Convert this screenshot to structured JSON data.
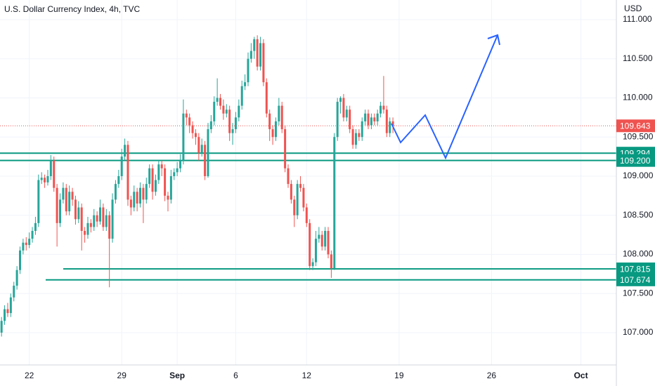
{
  "chart_data": {
    "type": "candlestick",
    "title": "U.S. Dollar Currency Index, 4h, TVC",
    "y_unit": "USD",
    "up_color": "#26a69a",
    "down_color": "#ef5350",
    "level_color": "#089981",
    "grid": true,
    "xlim": [
      -0.5,
      199.5
    ],
    "ylim": [
      106.587,
      111.251
    ],
    "xticks": [
      {
        "value": 9,
        "label": "22"
      },
      {
        "value": 39,
        "label": "29"
      },
      {
        "value": 57,
        "label": "Sep"
      },
      {
        "value": 76,
        "label": "6"
      },
      {
        "value": 99,
        "label": "12"
      },
      {
        "value": 129,
        "label": "19"
      },
      {
        "value": 159,
        "label": "26"
      },
      {
        "value": 188,
        "label": "Oct"
      }
    ],
    "yticks": [
      {
        "value": 107,
        "label": "107.000"
      },
      {
        "value": 107.5,
        "label": "107.500"
      },
      {
        "value": 108,
        "label": "108.000"
      },
      {
        "value": 108.5,
        "label": "108.500"
      },
      {
        "value": 109,
        "label": "109.000"
      },
      {
        "value": 109.5,
        "label": "109.500"
      },
      {
        "value": 110,
        "label": "110.000"
      },
      {
        "value": 110.5,
        "label": "110.500"
      },
      {
        "value": 111,
        "label": "111.000"
      }
    ],
    "levels": [
      {
        "value": 109.294,
        "label": "109.294"
      },
      {
        "value": 109.2,
        "label": "109.200"
      },
      {
        "value": 107.815,
        "label": "107.815"
      },
      {
        "value": 107.674,
        "label": "107.674"
      }
    ],
    "last_price": {
      "value": 109.643,
      "label": "109.643"
    },
    "ohlc": [
      [
        107.0,
        107.2,
        106.95,
        107.15
      ],
      [
        107.15,
        107.35,
        107.1,
        107.3
      ],
      [
        107.3,
        107.38,
        107.2,
        107.25
      ],
      [
        107.25,
        107.5,
        107.2,
        107.45
      ],
      [
        107.45,
        107.65,
        107.4,
        107.6
      ],
      [
        107.6,
        107.85,
        107.55,
        107.8
      ],
      [
        107.8,
        108.1,
        107.75,
        108.05
      ],
      [
        108.05,
        108.2,
        108.0,
        108.15
      ],
      [
        108.15,
        108.22,
        108.05,
        108.12
      ],
      [
        108.12,
        108.28,
        108.08,
        108.2
      ],
      [
        108.2,
        108.35,
        108.15,
        108.3
      ],
      [
        108.3,
        108.48,
        108.25,
        108.4
      ],
      [
        108.4,
        109.02,
        108.35,
        108.95
      ],
      [
        108.95,
        109.05,
        108.9,
        108.98
      ],
      [
        108.98,
        109.02,
        108.85,
        108.92
      ],
      [
        108.92,
        109.08,
        108.88,
        109.0
      ],
      [
        109.0,
        109.27,
        108.95,
        109.2
      ],
      [
        109.2,
        109.25,
        108.8,
        108.85
      ],
      [
        108.85,
        108.9,
        108.1,
        108.4
      ],
      [
        108.4,
        108.78,
        108.35,
        108.7
      ],
      [
        108.7,
        108.92,
        108.65,
        108.85
      ],
      [
        108.85,
        108.9,
        108.5,
        108.55
      ],
      [
        108.55,
        108.88,
        108.5,
        108.8
      ],
      [
        108.8,
        108.85,
        108.62,
        108.7
      ],
      [
        108.7,
        108.75,
        108.38,
        108.45
      ],
      [
        108.45,
        108.68,
        108.4,
        108.6
      ],
      [
        108.6,
        108.65,
        108.05,
        108.3
      ],
      [
        108.3,
        108.35,
        108.15,
        108.25
      ],
      [
        108.25,
        108.48,
        108.2,
        108.4
      ],
      [
        108.4,
        108.45,
        108.28,
        108.35
      ],
      [
        108.35,
        108.58,
        108.3,
        108.5
      ],
      [
        108.5,
        108.55,
        108.35,
        108.42
      ],
      [
        108.42,
        108.7,
        108.38,
        108.6
      ],
      [
        108.6,
        108.65,
        108.3,
        108.35
      ],
      [
        108.35,
        108.58,
        108.3,
        108.5
      ],
      [
        108.5,
        108.55,
        107.58,
        108.2
      ],
      [
        108.2,
        108.78,
        108.15,
        108.7
      ],
      [
        108.7,
        108.95,
        108.65,
        108.9
      ],
      [
        108.9,
        109.08,
        108.85,
        109.0
      ],
      [
        109.0,
        109.35,
        108.95,
        109.25
      ],
      [
        109.25,
        109.48,
        109.2,
        109.4
      ],
      [
        109.4,
        109.45,
        108.62,
        108.7
      ],
      [
        108.7,
        108.75,
        108.5,
        108.6
      ],
      [
        108.6,
        108.88,
        108.55,
        108.8
      ],
      [
        108.8,
        108.85,
        108.55,
        108.65
      ],
      [
        108.65,
        108.92,
        108.6,
        108.85
      ],
      [
        108.85,
        108.9,
        108.4,
        108.7
      ],
      [
        108.7,
        108.98,
        108.65,
        108.9
      ],
      [
        108.9,
        109.15,
        108.85,
        109.1
      ],
      [
        109.1,
        109.15,
        108.7,
        108.8
      ],
      [
        108.8,
        109.02,
        108.75,
        108.95
      ],
      [
        108.95,
        109.2,
        108.9,
        109.15
      ],
      [
        109.15,
        109.2,
        109.0,
        109.1
      ],
      [
        109.1,
        109.15,
        108.68,
        108.75
      ],
      [
        108.75,
        108.8,
        108.55,
        108.7
      ],
      [
        108.7,
        109.08,
        108.65,
        109.0
      ],
      [
        109.0,
        109.1,
        108.95,
        109.05
      ],
      [
        109.05,
        109.18,
        109.0,
        109.1
      ],
      [
        109.1,
        109.28,
        109.05,
        109.2
      ],
      [
        109.2,
        109.98,
        109.15,
        109.8
      ],
      [
        109.8,
        109.85,
        109.65,
        109.75
      ],
      [
        109.75,
        109.8,
        109.55,
        109.65
      ],
      [
        109.65,
        109.7,
        109.48,
        109.55
      ],
      [
        109.55,
        109.6,
        109.4,
        109.5
      ],
      [
        109.5,
        109.55,
        109.2,
        109.3
      ],
      [
        109.3,
        109.48,
        109.25,
        109.4
      ],
      [
        109.4,
        109.45,
        108.95,
        109.0
      ],
      [
        109.0,
        109.68,
        108.98,
        109.6
      ],
      [
        109.6,
        109.78,
        109.55,
        109.7
      ],
      [
        109.7,
        110.02,
        109.65,
        109.95
      ],
      [
        109.95,
        110.25,
        109.9,
        110.0
      ],
      [
        110.0,
        110.05,
        109.85,
        109.9
      ],
      [
        109.9,
        109.98,
        109.72,
        109.8
      ],
      [
        109.8,
        109.92,
        109.75,
        109.85
      ],
      [
        109.85,
        109.9,
        109.45,
        109.55
      ],
      [
        109.55,
        109.68,
        109.4,
        109.6
      ],
      [
        109.6,
        109.82,
        109.55,
        109.75
      ],
      [
        109.75,
        109.98,
        109.7,
        109.9
      ],
      [
        109.9,
        110.22,
        109.85,
        110.15
      ],
      [
        110.15,
        110.3,
        110.1,
        110.2
      ],
      [
        110.2,
        110.58,
        110.15,
        110.5
      ],
      [
        110.5,
        110.7,
        110.45,
        110.6
      ],
      [
        110.6,
        110.78,
        110.5,
        110.75
      ],
      [
        110.75,
        110.8,
        110.35,
        110.4
      ],
      [
        110.4,
        110.78,
        110.35,
        110.7
      ],
      [
        110.7,
        110.75,
        110.15,
        110.2
      ],
      [
        110.2,
        110.25,
        109.75,
        109.8
      ],
      [
        109.8,
        109.85,
        109.45,
        109.6
      ],
      [
        109.6,
        109.65,
        109.4,
        109.5
      ],
      [
        109.5,
        109.75,
        109.45,
        109.7
      ],
      [
        109.7,
        110.0,
        109.65,
        109.9
      ],
      [
        109.9,
        109.95,
        109.55,
        109.6
      ],
      [
        109.6,
        109.65,
        109.05,
        109.1
      ],
      [
        109.1,
        109.15,
        108.85,
        108.9
      ],
      [
        108.9,
        108.95,
        108.65,
        108.7
      ],
      [
        108.7,
        108.75,
        108.35,
        108.5
      ],
      [
        108.5,
        108.95,
        108.45,
        108.9
      ],
      [
        108.9,
        109.0,
        108.8,
        108.85
      ],
      [
        108.85,
        108.9,
        108.55,
        108.6
      ],
      [
        108.6,
        108.65,
        108.35,
        108.4
      ],
      [
        108.4,
        108.45,
        107.8,
        107.85
      ],
      [
        107.85,
        107.95,
        107.8,
        107.9
      ],
      [
        107.9,
        108.3,
        107.85,
        108.2
      ],
      [
        108.2,
        108.35,
        108.15,
        108.25
      ],
      [
        108.25,
        108.3,
        108.05,
        108.1
      ],
      [
        108.1,
        108.35,
        108.05,
        108.3
      ],
      [
        108.3,
        108.35,
        107.95,
        108.0
      ],
      [
        108.0,
        108.05,
        107.7,
        107.82
      ],
      [
        107.82,
        109.55,
        107.8,
        109.5
      ],
      [
        109.5,
        110.0,
        109.45,
        109.95
      ],
      [
        109.95,
        110.02,
        109.8,
        110.0
      ],
      [
        110.0,
        110.05,
        109.7,
        109.75
      ],
      [
        109.75,
        109.9,
        109.7,
        109.85
      ],
      [
        109.85,
        109.9,
        109.55,
        109.6
      ],
      [
        109.6,
        109.65,
        109.35,
        109.4
      ],
      [
        109.4,
        109.6,
        109.35,
        109.55
      ],
      [
        109.55,
        109.6,
        109.45,
        109.5
      ],
      [
        109.5,
        109.75,
        109.45,
        109.7
      ],
      [
        109.7,
        109.85,
        109.65,
        109.8
      ],
      [
        109.8,
        109.85,
        109.6,
        109.65
      ],
      [
        109.65,
        109.8,
        109.6,
        109.75
      ],
      [
        109.75,
        109.8,
        109.65,
        109.7
      ],
      [
        109.7,
        109.85,
        109.65,
        109.8
      ],
      [
        109.8,
        109.95,
        109.75,
        109.9
      ],
      [
        109.9,
        110.28,
        109.8,
        109.85
      ],
      [
        109.85,
        109.9,
        109.5,
        109.55
      ],
      [
        109.55,
        109.75,
        109.5,
        109.7
      ],
      [
        109.7,
        109.75,
        109.55,
        109.64
      ]
    ]
  }
}
